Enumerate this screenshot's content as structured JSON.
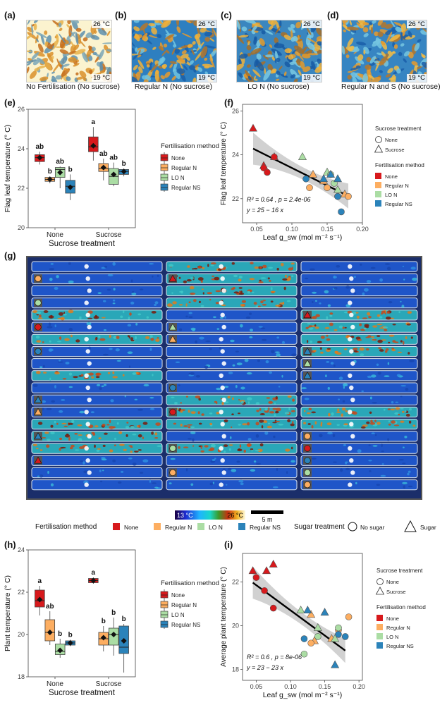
{
  "panels": {
    "a": {
      "letter": "(a)",
      "caption": "No Fertilisation (No sucrose)",
      "t_high": "26 °C",
      "t_low": "19 °C"
    },
    "b": {
      "letter": "(b)",
      "caption": "Regular N (No sucrose)",
      "t_high": "26 °C",
      "t_low": "19 °C"
    },
    "c": {
      "letter": "(c)",
      "caption": "LO N (No sucrose)",
      "t_high": "26 °C",
      "t_low": "19 °C"
    },
    "d": {
      "letter": "(d)",
      "caption": "Regular N and S (No sucrose)",
      "t_high": "26 °C",
      "t_low": "19 °C"
    },
    "e": {
      "letter": "(e)"
    },
    "f": {
      "letter": "(f)"
    },
    "g": {
      "letter": "(g)"
    },
    "h": {
      "letter": "(h)"
    },
    "i": {
      "letter": "(i)"
    }
  },
  "g_legend": {
    "scale_low": "13 °C",
    "scale_high": "26 °C",
    "scale_bar": "5 m",
    "fert_title": "Fertilisation method",
    "fert_items": [
      "None",
      "Regular N",
      "LO N",
      "Regular NS"
    ],
    "sugar_title": "Sugar treatment",
    "sugar_items": [
      "No sugar",
      "Sugar"
    ]
  },
  "colors": {
    "None": "#d7191c",
    "Regular N": "#fdae61",
    "LO N": "#abdda4",
    "Regular NS": "#2b83ba"
  },
  "chart_data": [
    {
      "id": "e",
      "type": "box",
      "ylabel": "Flag leaf temperature (° C)",
      "xlabel": "Sucrose treatment",
      "categories": [
        "None",
        "Sucrose"
      ],
      "ylim": [
        20,
        26
      ],
      "yticks": [
        20,
        22,
        24,
        26
      ],
      "legend_title": "Fertilisation method",
      "legend": [
        "None",
        "Regular N",
        "LO N",
        "Regular NS"
      ],
      "boxes": [
        {
          "cat": "None",
          "series": "None",
          "min": 23.2,
          "q1": 23.35,
          "med": 23.55,
          "q3": 23.7,
          "max": 23.85,
          "mean": 23.55,
          "letter": "ab"
        },
        {
          "cat": "None",
          "series": "Regular N",
          "min": 22.25,
          "q1": 22.35,
          "med": 22.45,
          "q3": 22.55,
          "max": 22.6,
          "mean": 22.45,
          "letter": "b"
        },
        {
          "cat": "None",
          "series": "LO N",
          "min": 22.0,
          "q1": 22.55,
          "med": 22.95,
          "q3": 23.05,
          "max": 23.1,
          "mean": 22.8,
          "letter": "ab"
        },
        {
          "cat": "None",
          "series": "Regular NS",
          "min": 21.4,
          "q1": 21.75,
          "med": 22.1,
          "q3": 22.4,
          "max": 22.7,
          "mean": 22.05,
          "letter": "b"
        },
        {
          "cat": "Sucrose",
          "series": "None",
          "min": 23.4,
          "q1": 23.85,
          "med": 24.1,
          "q3": 24.6,
          "max": 25.1,
          "mean": 24.15,
          "letter": "a"
        },
        {
          "cat": "Sucrose",
          "series": "Regular N",
          "min": 22.4,
          "q1": 22.85,
          "med": 23.0,
          "q3": 23.25,
          "max": 23.5,
          "mean": 23.05,
          "letter": "ab"
        },
        {
          "cat": "Sucrose",
          "series": "LO N",
          "min": 22.1,
          "q1": 22.2,
          "med": 22.6,
          "q3": 23.0,
          "max": 23.3,
          "mean": 22.7,
          "letter": "ab"
        },
        {
          "cat": "Sucrose",
          "series": "Regular NS",
          "min": 22.6,
          "q1": 22.7,
          "med": 22.85,
          "q3": 22.95,
          "max": 23.0,
          "mean": 22.85,
          "letter": "b"
        }
      ]
    },
    {
      "id": "f",
      "type": "scatter",
      "ylabel": "Flag leaf temperature (° C)",
      "xlabel": "Leaf g_sw (mol m⁻² s⁻¹)",
      "xlim": [
        0.03,
        0.2
      ],
      "ylim": [
        20.9,
        26.3
      ],
      "xticks": [
        0.05,
        0.1,
        0.15,
        0.2
      ],
      "xtick_labels": [
        "0.05",
        "0.10",
        "0.15",
        "0.20"
      ],
      "yticks": [
        22,
        24,
        26
      ],
      "stats_r2": "R² = 0.64 , p = 2.4e-06",
      "stats_eq": "y = 25 − 16 x",
      "fit": {
        "intercept": 25,
        "slope": -16
      },
      "shape_legend_title": "Sucrose treatment",
      "shape_legend": [
        "None",
        "Sucrose"
      ],
      "color_legend_title": "Fertilisation method",
      "color_legend": [
        "None",
        "Regular N",
        "LO N",
        "Regular NS"
      ],
      "points": [
        {
          "x": 0.045,
          "y": 25.2,
          "series": "None",
          "shape": "triangle"
        },
        {
          "x": 0.075,
          "y": 23.9,
          "series": "None",
          "shape": "triangle"
        },
        {
          "x": 0.06,
          "y": 23.5,
          "series": "None",
          "shape": "triangle"
        },
        {
          "x": 0.06,
          "y": 23.4,
          "series": "None",
          "shape": "circle"
        },
        {
          "x": 0.065,
          "y": 23.2,
          "series": "None",
          "shape": "circle"
        },
        {
          "x": 0.075,
          "y": 23.9,
          "series": "None",
          "shape": "circle"
        },
        {
          "x": 0.13,
          "y": 23.1,
          "series": "Regular N",
          "shape": "triangle"
        },
        {
          "x": 0.145,
          "y": 22.8,
          "series": "Regular N",
          "shape": "triangle"
        },
        {
          "x": 0.175,
          "y": 22.2,
          "series": "Regular N",
          "shape": "triangle"
        },
        {
          "x": 0.125,
          "y": 22.5,
          "series": "Regular N",
          "shape": "circle"
        },
        {
          "x": 0.15,
          "y": 22.5,
          "series": "Regular N",
          "shape": "circle"
        },
        {
          "x": 0.18,
          "y": 22.1,
          "series": "Regular N",
          "shape": "circle"
        },
        {
          "x": 0.115,
          "y": 23.9,
          "series": "LO N",
          "shape": "triangle"
        },
        {
          "x": 0.15,
          "y": 23.2,
          "series": "LO N",
          "shape": "triangle"
        },
        {
          "x": 0.165,
          "y": 22.4,
          "series": "LO N",
          "shape": "triangle"
        },
        {
          "x": 0.155,
          "y": 23.1,
          "series": "LO N",
          "shape": "circle"
        },
        {
          "x": 0.16,
          "y": 22.7,
          "series": "LO N",
          "shape": "circle"
        },
        {
          "x": 0.165,
          "y": 22.1,
          "series": "LO N",
          "shape": "circle"
        },
        {
          "x": 0.145,
          "y": 22.9,
          "series": "Regular NS",
          "shape": "triangle"
        },
        {
          "x": 0.155,
          "y": 23.1,
          "series": "Regular NS",
          "shape": "triangle"
        },
        {
          "x": 0.165,
          "y": 22.9,
          "series": "Regular NS",
          "shape": "triangle"
        },
        {
          "x": 0.12,
          "y": 22.9,
          "series": "Regular NS",
          "shape": "circle"
        },
        {
          "x": 0.165,
          "y": 22.1,
          "series": "Regular NS",
          "shape": "circle"
        },
        {
          "x": 0.17,
          "y": 21.4,
          "series": "Regular NS",
          "shape": "circle"
        }
      ]
    },
    {
      "id": "h",
      "type": "box",
      "ylabel": "Plant temperature (° C)",
      "xlabel": "Sucrose treatment",
      "categories": [
        "None",
        "Sucrose"
      ],
      "ylim": [
        18,
        24
      ],
      "yticks": [
        18,
        20,
        22,
        24
      ],
      "legend_title": "Fertilisation method",
      "legend": [
        "None",
        "Regular N",
        "LO N",
        "Regular NS"
      ],
      "boxes": [
        {
          "cat": "None",
          "series": "None",
          "min": 20.9,
          "q1": 21.3,
          "med": 21.6,
          "q3": 22.1,
          "max": 22.3,
          "mean": 21.65,
          "letter": "a"
        },
        {
          "cat": "None",
          "series": "Regular N",
          "min": 19.5,
          "q1": 19.7,
          "med": 20.1,
          "q3": 20.7,
          "max": 21.1,
          "mean": 20.1,
          "letter": "ab"
        },
        {
          "cat": "None",
          "series": "LO N",
          "min": 18.9,
          "q1": 19.05,
          "med": 19.2,
          "q3": 19.55,
          "max": 19.8,
          "mean": 19.25,
          "letter": "b"
        },
        {
          "cat": "None",
          "series": "Regular NS",
          "min": 19.45,
          "q1": 19.5,
          "med": 19.6,
          "q3": 19.7,
          "max": 19.75,
          "mean": 19.6,
          "letter": "b"
        },
        {
          "cat": "Sucrose",
          "series": "None",
          "min": 22.4,
          "q1": 22.45,
          "med": 22.55,
          "q3": 22.65,
          "max": 22.7,
          "mean": 22.55,
          "letter": "a"
        },
        {
          "cat": "Sucrose",
          "series": "Regular N",
          "min": 19.2,
          "q1": 19.5,
          "med": 19.8,
          "q3": 20.1,
          "max": 20.4,
          "mean": 19.85,
          "letter": "b"
        },
        {
          "cat": "Sucrose",
          "series": "LO N",
          "min": 19.0,
          "q1": 19.5,
          "med": 20.0,
          "q3": 20.3,
          "max": 20.8,
          "mean": 20.0,
          "letter": "b"
        },
        {
          "cat": "Sucrose",
          "series": "Regular NS",
          "min": 18.2,
          "q1": 19.1,
          "med": 19.4,
          "q3": 20.4,
          "max": 20.5,
          "mean": 19.7,
          "letter": "b"
        }
      ]
    },
    {
      "id": "i",
      "type": "scatter",
      "ylabel": "Average plant temperature (° C)",
      "xlabel": "Leaf g_sw (mol m⁻² s⁻¹)",
      "xlim": [
        0.03,
        0.205
      ],
      "ylim": [
        17.5,
        23.3
      ],
      "xticks": [
        0.05,
        0.1,
        0.15,
        0.2
      ],
      "xtick_labels": [
        "0.05",
        "0.10",
        "0.15",
        "0.20"
      ],
      "yticks": [
        18,
        20,
        22
      ],
      "stats_r2": "R² = 0.6 , p = 8e-06",
      "stats_eq": "y = 23 − 23 x",
      "fit": {
        "intercept": 23,
        "slope": -23
      },
      "shape_legend_title": "Sucrose treatment",
      "shape_legend": [
        "None",
        "Sucrose"
      ],
      "color_legend_title": "Fertilisation method",
      "color_legend": [
        "None",
        "Regular N",
        "LO N",
        "Regular NS"
      ],
      "points": [
        {
          "x": 0.045,
          "y": 22.5,
          "series": "None",
          "shape": "triangle"
        },
        {
          "x": 0.065,
          "y": 22.5,
          "series": "None",
          "shape": "triangle"
        },
        {
          "x": 0.075,
          "y": 22.8,
          "series": "None",
          "shape": "triangle"
        },
        {
          "x": 0.05,
          "y": 22.2,
          "series": "None",
          "shape": "circle"
        },
        {
          "x": 0.062,
          "y": 21.6,
          "series": "None",
          "shape": "circle"
        },
        {
          "x": 0.075,
          "y": 20.8,
          "series": "None",
          "shape": "circle"
        },
        {
          "x": 0.13,
          "y": 20.5,
          "series": "Regular N",
          "shape": "triangle"
        },
        {
          "x": 0.135,
          "y": 19.3,
          "series": "Regular N",
          "shape": "triangle"
        },
        {
          "x": 0.16,
          "y": 19.4,
          "series": "Regular N",
          "shape": "triangle"
        },
        {
          "x": 0.13,
          "y": 19.2,
          "series": "Regular N",
          "shape": "circle"
        },
        {
          "x": 0.17,
          "y": 19.8,
          "series": "Regular N",
          "shape": "circle"
        },
        {
          "x": 0.185,
          "y": 20.4,
          "series": "Regular N",
          "shape": "circle"
        },
        {
          "x": 0.115,
          "y": 20.7,
          "series": "LO N",
          "shape": "triangle"
        },
        {
          "x": 0.14,
          "y": 19.9,
          "series": "LO N",
          "shape": "triangle"
        },
        {
          "x": 0.165,
          "y": 19.4,
          "series": "LO N",
          "shape": "triangle"
        },
        {
          "x": 0.12,
          "y": 18.7,
          "series": "LO N",
          "shape": "circle"
        },
        {
          "x": 0.14,
          "y": 19.5,
          "series": "LO N",
          "shape": "circle"
        },
        {
          "x": 0.17,
          "y": 19.9,
          "series": "LO N",
          "shape": "circle"
        },
        {
          "x": 0.125,
          "y": 20.7,
          "series": "Regular NS",
          "shape": "triangle"
        },
        {
          "x": 0.15,
          "y": 20.6,
          "series": "Regular NS",
          "shape": "triangle"
        },
        {
          "x": 0.165,
          "y": 18.2,
          "series": "Regular NS",
          "shape": "triangle"
        },
        {
          "x": 0.12,
          "y": 19.4,
          "series": "Regular NS",
          "shape": "circle"
        },
        {
          "x": 0.17,
          "y": 19.6,
          "series": "Regular NS",
          "shape": "circle"
        },
        {
          "x": 0.18,
          "y": 19.5,
          "series": "Regular NS",
          "shape": "circle"
        }
      ]
    }
  ]
}
